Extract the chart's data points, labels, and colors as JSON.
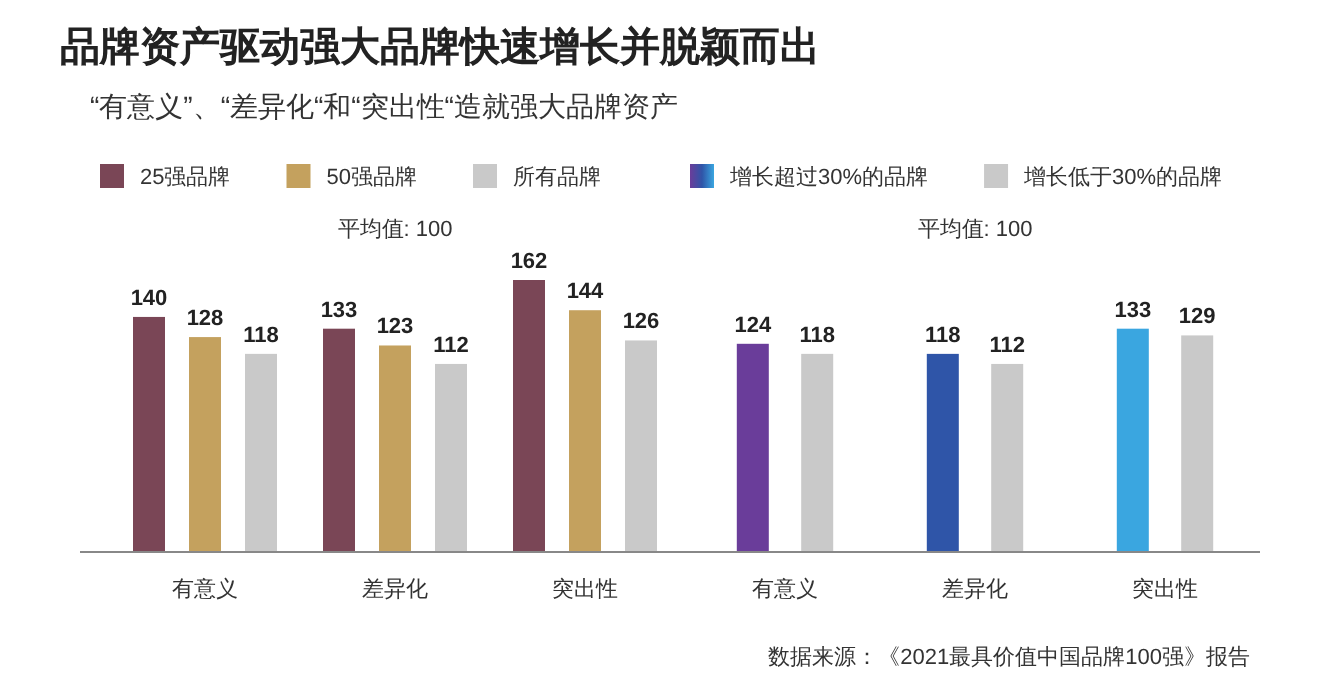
{
  "chart_data": [
    {
      "type": "bar",
      "title": "品牌资产驱动强大品牌快速增长并脱颖而出",
      "subtitle": "“有意义”、“差异化“和“突出性“造就强大品牌资产",
      "categories": [
        "有意义",
        "差异化",
        "突出性"
      ],
      "series": [
        {
          "name": "25强品牌",
          "color": "#7a4656",
          "values": [
            140,
            133,
            162
          ]
        },
        {
          "name": "50强品牌",
          "color": "#c4a15e",
          "values": [
            128,
            123,
            144
          ]
        },
        {
          "name": "所有品牌",
          "color": "#c9c9c9",
          "values": [
            118,
            112,
            126
          ]
        }
      ],
      "data_labels": true,
      "legend": "top",
      "annotations": [
        "平均值: 100"
      ]
    },
    {
      "type": "bar",
      "categories": [
        "有意义",
        "差异化",
        "突出性"
      ],
      "series": [
        {
          "name": "增长超过30%的品牌",
          "color": "#4a4aa8",
          "colors": [
            "#6a3d9a",
            "#2f55a8",
            "#3aa6e0"
          ],
          "values": [
            124,
            118,
            133
          ]
        },
        {
          "name": "增长低于30%的品牌",
          "color": "#c9c9c9",
          "values": [
            118,
            112,
            129
          ]
        }
      ],
      "data_labels": true,
      "legend": "top",
      "annotations": [
        "平均值: 100",
        "数据来源：《2021最具价值中国品牌100强》报告"
      ]
    }
  ]
}
